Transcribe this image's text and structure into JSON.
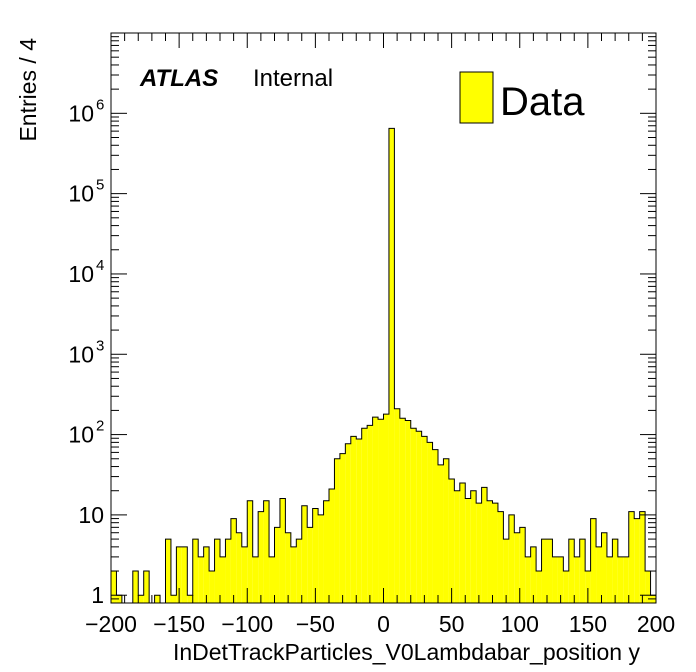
{
  "chart_data": {
    "type": "bar",
    "title": "",
    "xlabel": "InDetTrackParticles_V0Lambdabar_position y",
    "ylabel": "Entries / 4",
    "xlim": [
      -200,
      200
    ],
    "ylim": [
      0.8,
      10000000
    ],
    "log_y": true,
    "grid": false,
    "bin_width": 4,
    "x_tick_labels": [
      "−200",
      "−150",
      "−100",
      "−50",
      "0",
      "50",
      "100",
      "150",
      "200"
    ],
    "y_tick_labels": [
      {
        "value": 1,
        "base": "1",
        "exp": ""
      },
      {
        "value": 10,
        "base": "10",
        "exp": ""
      },
      {
        "value": 100,
        "base": "10",
        "exp": "2"
      },
      {
        "value": 1000,
        "base": "10",
        "exp": "3"
      },
      {
        "value": 10000,
        "base": "10",
        "exp": "4"
      },
      {
        "value": 100000,
        "base": "10",
        "exp": "5"
      },
      {
        "value": 1000000,
        "base": "10",
        "exp": "6"
      }
    ],
    "legend_position": "top-right",
    "annotation": {
      "experiment": "ATLAS",
      "status": "Internal"
    },
    "series": [
      {
        "name": "Data",
        "color": "#ffff00",
        "edge_color": "#000000",
        "values": [
          2,
          1,
          0,
          0,
          2,
          1,
          2,
          0,
          1,
          0,
          5,
          1,
          4,
          4,
          1,
          5,
          3,
          4,
          2,
          5,
          3,
          5,
          9,
          6,
          4,
          15,
          3,
          11,
          15,
          3,
          7,
          16,
          6,
          4,
          5,
          13,
          7,
          12,
          10,
          15,
          21,
          50,
          58,
          77,
          95,
          88,
          120,
          130,
          165,
          155,
          180,
          650000,
          210,
          160,
          150,
          120,
          110,
          95,
          80,
          65,
          42,
          50,
          28,
          20,
          25,
          16,
          20,
          14,
          22,
          15,
          14,
          11,
          5,
          10,
          6,
          7,
          3,
          4,
          2,
          5,
          5,
          3,
          3,
          2,
          5,
          3,
          5,
          2,
          9,
          4,
          6,
          3,
          5,
          3,
          3,
          11,
          9,
          11,
          2,
          1
        ]
      }
    ]
  }
}
